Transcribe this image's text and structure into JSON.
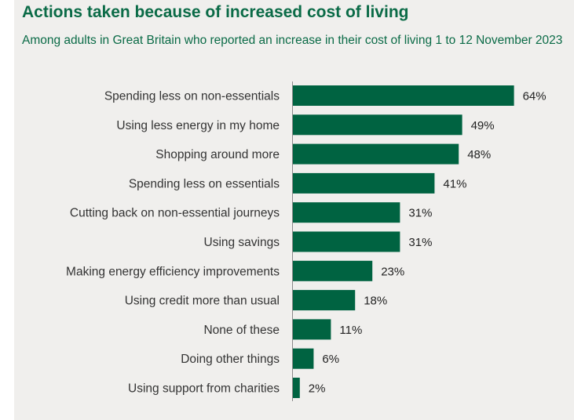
{
  "title": "Actions taken because of increased cost of living",
  "subtitle": "Among adults in Great Britain who reported an increase in their cost of living 1 to 12 November 2023",
  "colors": {
    "bar": "#006341",
    "title": "#0b6b47",
    "background": "#f0efed"
  },
  "chart_data": {
    "type": "bar",
    "orientation": "horizontal",
    "title": "Actions taken because of increased cost of living",
    "subtitle": "Among adults in Great Britain who reported an increase in their cost of living 1 to 12 November 2023",
    "categories": [
      "Spending less on non-essentials",
      "Using less energy in my home",
      "Shopping around more",
      "Spending less on essentials",
      "Cutting back on non-essential journeys",
      "Using savings",
      "Making energy efficiency improvements",
      "Using credit more than usual",
      "None of these",
      "Doing other things",
      "Using support from charities"
    ],
    "values": [
      64,
      49,
      48,
      41,
      31,
      31,
      23,
      18,
      11,
      6,
      2
    ],
    "value_labels": [
      "64%",
      "49%",
      "48%",
      "41%",
      "31%",
      "31%",
      "23%",
      "18%",
      "11%",
      "6%",
      "2%"
    ],
    "unit": "%",
    "xlim": [
      0,
      100
    ],
    "grid": false,
    "legend": "none"
  }
}
